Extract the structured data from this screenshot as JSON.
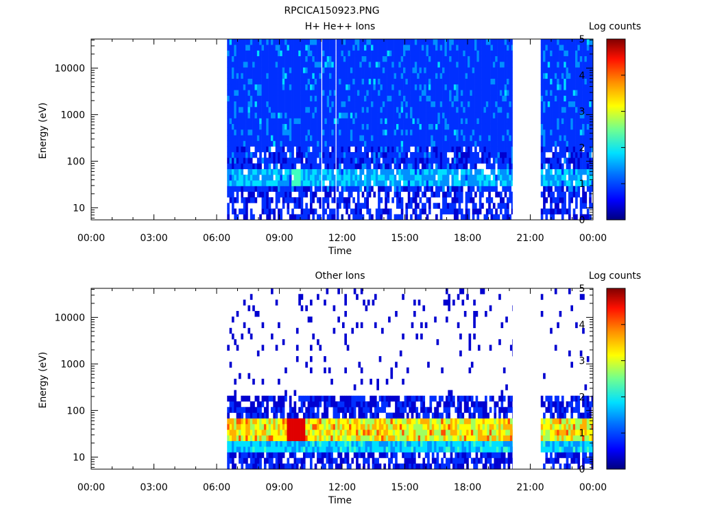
{
  "figure": {
    "title": "RPCICA150923.PNG"
  },
  "colorbar_scale": [
    "#000080",
    "#0000d0",
    "#0030ff",
    "#0090ff",
    "#00e0ff",
    "#40ffbf",
    "#a0ff60",
    "#ffff00",
    "#ffb000",
    "#ff5000",
    "#e00000",
    "#900000"
  ],
  "chart_data": [
    {
      "type": "heatmap",
      "title": "H+ He++ Ions",
      "xlabel": "Time",
      "ylabel": "Energy (eV)",
      "x_ticks": [
        "00:00",
        "03:00",
        "06:00",
        "09:00",
        "12:00",
        "15:00",
        "18:00",
        "21:00",
        "00:00"
      ],
      "y_ticks": [
        "10",
        "100",
        "1000",
        "10000"
      ],
      "y_scale": "log",
      "ylim": [
        5.5,
        42000
      ],
      "xlim_hours": [
        0,
        24
      ],
      "colorbar": {
        "label": "Log counts",
        "ticks": [
          "0",
          "1",
          "2",
          "3",
          "4",
          "5"
        ],
        "range": [
          0,
          5
        ]
      },
      "data_coverage_hours": [
        [
          6.5,
          11.0
        ],
        [
          11.05,
          11.68
        ],
        [
          11.73,
          20.15
        ],
        [
          21.5,
          24.0
        ]
      ],
      "profile": {
        "description": "background ~0.7-1 log counts at all energies, band of ~1.5-2 at 30-60 eV, sparse low-energy streaks",
        "band_energy_ev": [
          30,
          60
        ],
        "band_peak_log_counts": 2.0,
        "background_log_counts": 0.8
      }
    },
    {
      "type": "heatmap",
      "title": "Other Ions",
      "xlabel": "Time",
      "ylabel": "Energy (eV)",
      "x_ticks": [
        "00:00",
        "03:00",
        "06:00",
        "09:00",
        "12:00",
        "15:00",
        "18:00",
        "21:00",
        "00:00"
      ],
      "y_ticks": [
        "10",
        "100",
        "1000",
        "10000"
      ],
      "y_scale": "log",
      "ylim": [
        5.5,
        42000
      ],
      "xlim_hours": [
        0,
        24
      ],
      "colorbar": {
        "label": "Log counts",
        "ticks": [
          "0",
          "1",
          "2",
          "3",
          "4",
          "5"
        ],
        "range": [
          0,
          5
        ]
      },
      "data_coverage_hours": [
        [
          6.5,
          20.15
        ],
        [
          21.5,
          24.0
        ]
      ],
      "profile": {
        "description": "sparse dots above 200 eV, dense 0.5-1 below 200 eV, intense band 3-4.5 at 25-60 eV peaking near 09:45",
        "band_energy_ev": [
          25,
          60
        ],
        "band_peak_log_counts": 4.5,
        "background_log_counts": 0.5
      }
    }
  ]
}
